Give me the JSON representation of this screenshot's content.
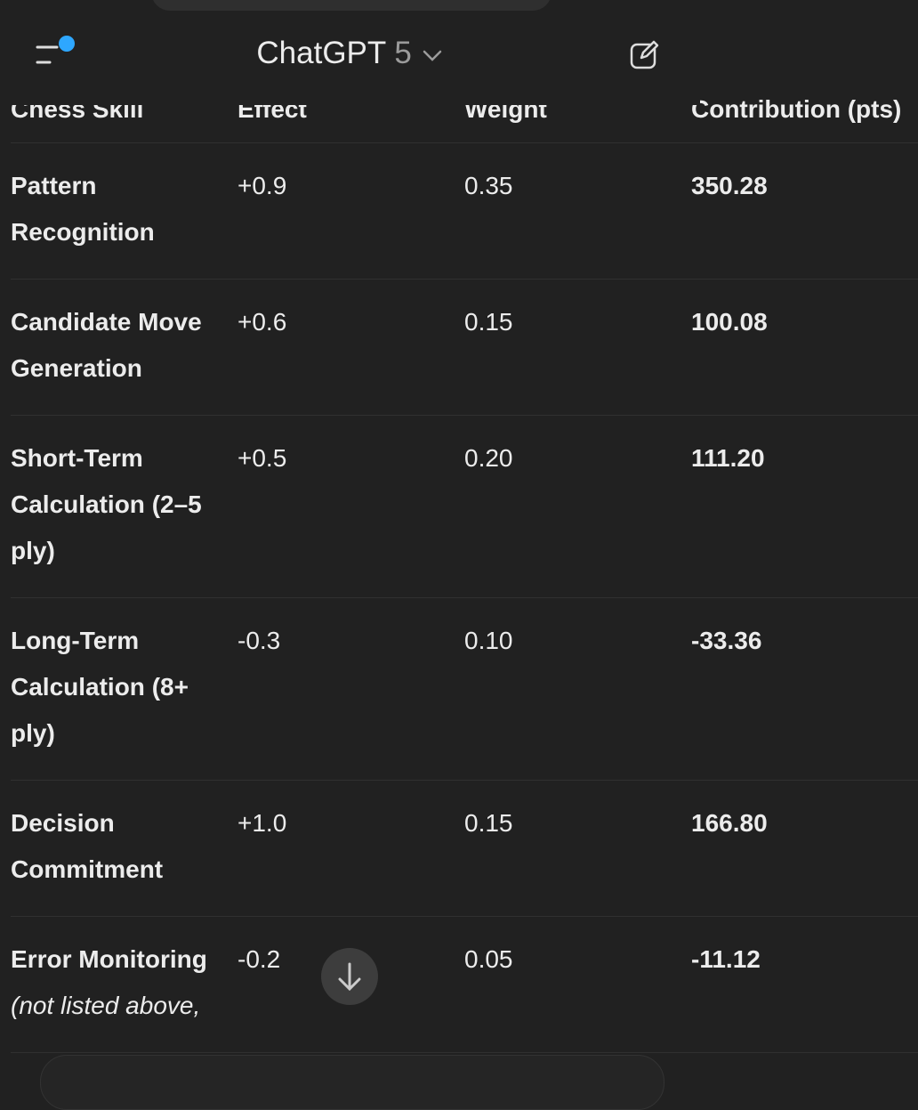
{
  "header": {
    "title": "ChatGPT",
    "model": "5"
  },
  "table": {
    "columns": [
      "Chess Skill",
      "Effect",
      "Weight",
      "Contribution (pts)"
    ],
    "rows": [
      {
        "skill": "Pattern Recognition",
        "effect": "+0.9",
        "weight": "0.35",
        "contribution": "350.28"
      },
      {
        "skill": "Candidate Move Generation",
        "effect": "+0.6",
        "weight": "0.15",
        "contribution": "100.08"
      },
      {
        "skill": "Short-Term Calculation (2–5 ply)",
        "effect": "+0.5",
        "weight": "0.20",
        "contribution": "111.20"
      },
      {
        "skill": "Long-Term Calculation (8+ ply)",
        "effect": "-0.3",
        "weight": "0.10",
        "contribution": "-33.36"
      },
      {
        "skill": "Decision Commitment",
        "effect": "+1.0",
        "weight": "0.15",
        "contribution": "166.80"
      },
      {
        "skill": "Error Monitoring",
        "note": "(not listed above,",
        "effect": "-0.2",
        "weight": "0.05",
        "contribution": "-11.12"
      }
    ]
  }
}
